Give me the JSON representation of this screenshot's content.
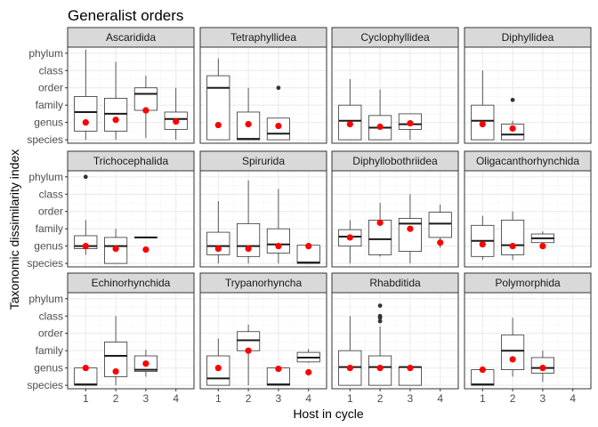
{
  "chart_data": {
    "type": "boxplot",
    "title": "Generalist orders",
    "xlabel": "Host in cycle",
    "ylabel": "Taxonomic dissimilarity index",
    "x_ticks": [
      "1",
      "2",
      "3",
      "4"
    ],
    "y_ticks": [
      "species",
      "genus",
      "family",
      "order",
      "class",
      "phylum"
    ],
    "y_tick_values": [
      1,
      2,
      3,
      4,
      5,
      6
    ],
    "ylim": [
      0.8,
      6.35
    ],
    "xlim": [
      0.4,
      4.6
    ],
    "facet_layout": [
      3,
      4
    ],
    "grid": true,
    "colors": {
      "mean_point": "#ff0000",
      "box": "#333333",
      "strip": "#d9d9d9",
      "panel_border": "#333333",
      "grid": "#ebebeb"
    },
    "panels": [
      {
        "name": "Ascaridida",
        "boxes": [
          {
            "x": 1,
            "min": 1,
            "q1": 1.5,
            "median": 2.6,
            "q3": 3.5,
            "max": 6.2,
            "mean": 2.0,
            "outliers": []
          },
          {
            "x": 2,
            "min": 1,
            "q1": 1.5,
            "median": 2.5,
            "q3": 3.4,
            "max": 5.5,
            "mean": 2.15,
            "outliers": []
          },
          {
            "x": 3,
            "min": 1.1,
            "q1": 2.7,
            "median": 3.65,
            "q3": 4.0,
            "max": 4.7,
            "mean": 2.7,
            "outliers": []
          },
          {
            "x": 4,
            "min": 1,
            "q1": 1.6,
            "median": 2.2,
            "q3": 2.6,
            "max": 4.0,
            "mean": 2.05,
            "outliers": []
          }
        ]
      },
      {
        "name": "Tetraphyllidea",
        "boxes": [
          {
            "x": 1,
            "min": 1,
            "q1": 1.0,
            "median": 4.0,
            "q3": 4.7,
            "max": 5.7,
            "mean": 1.85,
            "outliers": []
          },
          {
            "x": 2,
            "min": 1,
            "q1": 1.0,
            "median": 1.05,
            "q3": 2.6,
            "max": 4.0,
            "mean": 1.9,
            "outliers": []
          },
          {
            "x": 3,
            "min": 1,
            "q1": 1.0,
            "median": 1.35,
            "q3": 2.25,
            "max": 2.25,
            "mean": 1.8,
            "outliers": [
              4.0
            ]
          }
        ]
      },
      {
        "name": "Cyclophyllidea",
        "boxes": [
          {
            "x": 1,
            "min": 1,
            "q1": 1.0,
            "median": 2.1,
            "q3": 3.0,
            "max": 4.5,
            "mean": 1.9,
            "outliers": []
          },
          {
            "x": 2,
            "min": 1,
            "q1": 1.0,
            "median": 1.7,
            "q3": 2.4,
            "max": 3.9,
            "mean": 1.75,
            "outliers": []
          },
          {
            "x": 3,
            "min": 1,
            "q1": 1.6,
            "median": 1.9,
            "q3": 2.5,
            "max": 2.5,
            "mean": 1.95,
            "outliers": []
          }
        ]
      },
      {
        "name": "Diphyllidea",
        "boxes": [
          {
            "x": 1,
            "min": 1,
            "q1": 1.0,
            "median": 2.1,
            "q3": 3.0,
            "max": 5.0,
            "mean": 1.9,
            "outliers": []
          },
          {
            "x": 2,
            "min": 1,
            "q1": 1.0,
            "median": 1.3,
            "q3": 1.9,
            "max": 2.1,
            "mean": 1.65,
            "outliers": [
              3.3
            ]
          }
        ]
      },
      {
        "name": "Trichocephalida",
        "boxes": [
          {
            "x": 1,
            "min": 1.5,
            "q1": 1.85,
            "median": 2.0,
            "q3": 2.6,
            "max": 3.5,
            "mean": 2.0,
            "outliers": [
              6.0
            ]
          },
          {
            "x": 2,
            "min": 1,
            "q1": 1.0,
            "median": 2.0,
            "q3": 2.5,
            "max": 3.0,
            "mean": 1.85,
            "outliers": []
          },
          {
            "x": 3,
            "min": 2.5,
            "q1": 2.5,
            "median": 2.5,
            "q3": 2.5,
            "max": 2.5,
            "mean": 1.8,
            "outliers": []
          }
        ]
      },
      {
        "name": "Spirurida",
        "boxes": [
          {
            "x": 1,
            "min": 1,
            "q1": 1.5,
            "median": 2.0,
            "q3": 2.8,
            "max": 4.6,
            "mean": 1.85,
            "outliers": []
          },
          {
            "x": 2,
            "min": 1,
            "q1": 1.4,
            "median": 2.0,
            "q3": 3.3,
            "max": 5.8,
            "mean": 1.85,
            "outliers": []
          },
          {
            "x": 3,
            "min": 1,
            "q1": 1.6,
            "median": 2.1,
            "q3": 3.0,
            "max": 5.3,
            "mean": 2.0,
            "outliers": []
          },
          {
            "x": 4,
            "min": 1,
            "q1": 1.0,
            "median": 1.05,
            "q3": 2.05,
            "max": 2.05,
            "mean": 2.0,
            "outliers": []
          }
        ]
      },
      {
        "name": "Diphyllobothriidea",
        "boxes": [
          {
            "x": 1,
            "min": 1,
            "q1": 2.0,
            "median": 2.55,
            "q3": 2.95,
            "max": 3.5,
            "mean": 2.5,
            "outliers": []
          },
          {
            "x": 2,
            "min": 1.4,
            "q1": 1.5,
            "median": 2.4,
            "q3": 3.5,
            "max": 4.5,
            "mean": 3.35,
            "outliers": []
          },
          {
            "x": 3,
            "min": 1,
            "q1": 1.7,
            "median": 3.3,
            "q3": 3.6,
            "max": 5.0,
            "mean": 3.0,
            "outliers": []
          },
          {
            "x": 4,
            "min": 1.9,
            "q1": 2.5,
            "median": 3.3,
            "q3": 3.95,
            "max": 4.4,
            "mean": 2.2,
            "outliers": []
          }
        ]
      },
      {
        "name": "Oligacanthorhynchida",
        "boxes": [
          {
            "x": 1,
            "min": 1.2,
            "q1": 1.4,
            "median": 2.3,
            "q3": 3.2,
            "max": 3.75,
            "mean": 2.1,
            "outliers": []
          },
          {
            "x": 2,
            "min": 1.2,
            "q1": 1.5,
            "median": 2.05,
            "q3": 3.5,
            "max": 4.0,
            "mean": 2.0,
            "outliers": []
          },
          {
            "x": 3,
            "min": 2.1,
            "q1": 2.2,
            "median": 2.45,
            "q3": 2.7,
            "max": 2.85,
            "mean": 2.0,
            "outliers": []
          }
        ]
      },
      {
        "name": "Echinorhynchida",
        "boxes": [
          {
            "x": 1,
            "min": 1,
            "q1": 1.0,
            "median": 1.05,
            "q3": 2.0,
            "max": 2.1,
            "mean": 2.0,
            "outliers": []
          },
          {
            "x": 2,
            "min": 1,
            "q1": 1.5,
            "median": 2.7,
            "q3": 3.5,
            "max": 5.0,
            "mean": 1.8,
            "outliers": []
          },
          {
            "x": 3,
            "min": 1.5,
            "q1": 1.8,
            "median": 1.9,
            "q3": 2.7,
            "max": 3.05,
            "mean": 2.25,
            "outliers": []
          }
        ]
      },
      {
        "name": "Trypanorhyncha",
        "boxes": [
          {
            "x": 1,
            "min": 1,
            "q1": 1.0,
            "median": 1.4,
            "q3": 2.7,
            "max": 3.7,
            "mean": 2.0,
            "outliers": []
          },
          {
            "x": 2,
            "min": 1,
            "q1": 3.0,
            "median": 3.6,
            "q3": 4.1,
            "max": 4.5,
            "mean": 3.0,
            "outliers": []
          },
          {
            "x": 3,
            "min": 1,
            "q1": 1.0,
            "median": 1.05,
            "q3": 2.0,
            "max": 2.1,
            "mean": 1.95,
            "outliers": []
          },
          {
            "x": 4,
            "min": 2.3,
            "q1": 2.35,
            "median": 2.6,
            "q3": 2.9,
            "max": 3.1,
            "mean": 1.75,
            "outliers": []
          }
        ]
      },
      {
        "name": "Rhabditida",
        "boxes": [
          {
            "x": 1,
            "min": 1,
            "q1": 1.0,
            "median": 2.05,
            "q3": 3.0,
            "max": 5.0,
            "mean": 2.0,
            "outliers": []
          },
          {
            "x": 2,
            "min": 1,
            "q1": 1.0,
            "median": 2.05,
            "q3": 2.7,
            "max": 4.4,
            "mean": 2.0,
            "outliers": [
              4.7,
              4.9,
              5.0,
              5.6
            ]
          },
          {
            "x": 3,
            "min": 1,
            "q1": 1.0,
            "median": 2.05,
            "q3": 2.05,
            "max": 2.05,
            "mean": 2.0,
            "outliers": []
          }
        ]
      },
      {
        "name": "Polymorphida",
        "boxes": [
          {
            "x": 1,
            "min": 1,
            "q1": 1.0,
            "median": 1.05,
            "q3": 1.9,
            "max": 2.1,
            "mean": 1.9,
            "outliers": []
          },
          {
            "x": 2,
            "min": 1.5,
            "q1": 1.9,
            "median": 3.0,
            "q3": 3.9,
            "max": 4.9,
            "mean": 2.5,
            "outliers": []
          },
          {
            "x": 3,
            "min": 1.2,
            "q1": 1.7,
            "median": 2.0,
            "q3": 2.6,
            "max": 3.0,
            "mean": 2.0,
            "outliers": []
          }
        ]
      }
    ]
  }
}
